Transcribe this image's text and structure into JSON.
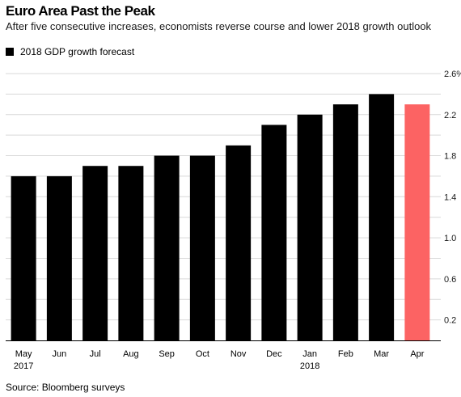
{
  "header": {
    "title": "Euro Area Past the Peak",
    "subtitle": "After five consecutive increases, economists reverse course and lower 2018 growth outlook"
  },
  "legend": {
    "label": "2018 GDP growth forecast"
  },
  "footer": {
    "source": "Source: Bloomberg surveys"
  },
  "colors": {
    "bar": "#000000",
    "highlight": "#fc6363",
    "grid": "#d9d9d9"
  },
  "chart_data": {
    "type": "bar",
    "title": "Euro Area Past the Peak",
    "subtitle": "After five consecutive increases, economists reverse course and lower 2018 growth outlook",
    "categories": [
      "May",
      "Jun",
      "Jul",
      "Aug",
      "Sep",
      "Oct",
      "Nov",
      "Dec",
      "Jan",
      "Feb",
      "Mar",
      "Apr"
    ],
    "year_labels": [
      "2017",
      "",
      "",
      "",
      "",
      "",
      "",
      "",
      "2018",
      "",
      "",
      ""
    ],
    "series": [
      {
        "name": "2018 GDP growth forecast",
        "values": [
          1.6,
          1.6,
          1.7,
          1.7,
          1.8,
          1.8,
          1.9,
          2.1,
          2.2,
          2.3,
          2.4,
          2.3
        ]
      }
    ],
    "highlight_index": 11,
    "yticks": [
      "2.6%",
      "2.2",
      "1.8",
      "1.4",
      "1.0",
      "0.6",
      "0.2"
    ],
    "ytick_values": [
      2.6,
      2.2,
      1.8,
      1.4,
      1.0,
      0.6,
      0.2
    ],
    "ylim": [
      0,
      2.6
    ],
    "y_axis_side": "right",
    "grid": true,
    "legend_position": "top-left"
  }
}
